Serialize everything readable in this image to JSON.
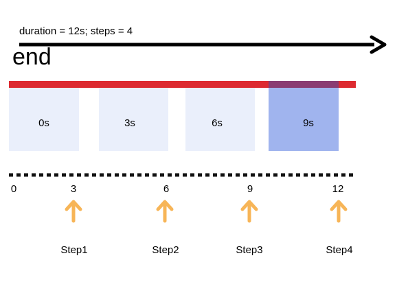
{
  "caption": "duration = 12s; steps = 4",
  "end_label": "end",
  "colors": {
    "arrow": "#000000",
    "bar": "#dd2a30",
    "box": "#eaeffb",
    "box_active": "#a0b4ee",
    "bar_active": "#8a3c72",
    "dots": "#111111",
    "step_arrow": "#f7b557"
  },
  "boxes": [
    {
      "label": "0s",
      "active": false
    },
    {
      "label": "3s",
      "active": false
    },
    {
      "label": "6s",
      "active": false
    },
    {
      "label": "9s",
      "active": true
    }
  ],
  "ticks": [
    "0",
    "3",
    "6",
    "9",
    "12"
  ],
  "steps": [
    {
      "label": "Step1",
      "arrow_icon": "arrow-up-icon"
    },
    {
      "label": "Step2",
      "arrow_icon": "arrow-up-icon"
    },
    {
      "label": "Step3",
      "arrow_icon": "arrow-up-icon"
    },
    {
      "label": "Step4",
      "arrow_icon": "arrow-up-icon"
    }
  ]
}
